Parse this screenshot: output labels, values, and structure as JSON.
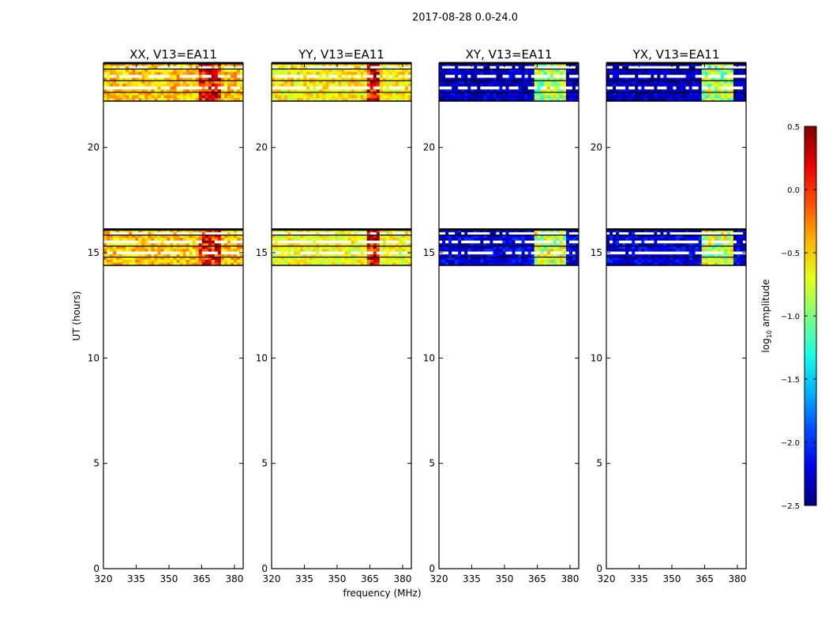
{
  "figure": {
    "suptitle": "2017-08-28 0.0-24.0",
    "colormap": "jet",
    "background": "#ffffff",
    "colorbar": {
      "label_base": "log",
      "label_sub": "10",
      "label_rest": " amplitude",
      "range": [
        -2.5,
        0.5
      ],
      "ticks": [
        "0.5",
        "0.0",
        "−0.5",
        "−1.0",
        "−1.5",
        "−2.0",
        "−2.5"
      ],
      "tick_values": [
        0.5,
        0.0,
        -0.5,
        -1.0,
        -1.5,
        -2.0,
        -2.5
      ]
    }
  },
  "chart_data": [
    {
      "type": "heatmap",
      "title": "XX, V13=EA11",
      "xlabel": "",
      "ylabel": "UT (hours)",
      "xlim": [
        320,
        384
      ],
      "ylim": [
        0,
        24
      ],
      "xticks": [
        "320",
        "335",
        "350",
        "365",
        "380"
      ],
      "xtick_values": [
        320,
        335,
        350,
        365,
        380
      ],
      "yticks": [
        "0",
        "5",
        "10",
        "15",
        "20"
      ],
      "ytick_values": [
        0,
        5,
        10,
        15,
        20
      ],
      "data_blocks": [
        {
          "ut_range": [
            14.4,
            16.1
          ],
          "baseline_log_amp": -0.45,
          "rfi_band_mhz": [
            363,
            374
          ],
          "rfi_log_amp": 0.05
        },
        {
          "ut_range": [
            22.2,
            24.0
          ],
          "baseline_log_amp": -0.45,
          "rfi_band_mhz": [
            363,
            374
          ],
          "rfi_log_amp": 0.05
        }
      ]
    },
    {
      "type": "heatmap",
      "title": "YY, V13=EA11",
      "xlabel": "frequency (MHz)",
      "ylabel": "",
      "xlim": [
        320,
        384
      ],
      "ylim": [
        0,
        24
      ],
      "xticks": [
        "320",
        "335",
        "350",
        "365",
        "380"
      ],
      "xtick_values": [
        320,
        335,
        350,
        365,
        380
      ],
      "yticks": [
        "0",
        "5",
        "10",
        "15",
        "20"
      ],
      "ytick_values": [
        0,
        5,
        10,
        15,
        20
      ],
      "data_blocks": [
        {
          "ut_range": [
            14.4,
            16.1
          ],
          "baseline_log_amp": -0.65,
          "rfi_band_mhz": [
            363,
            370
          ],
          "rfi_log_amp": 0.15
        },
        {
          "ut_range": [
            22.2,
            24.0
          ],
          "baseline_log_amp": -0.6,
          "rfi_band_mhz": [
            363,
            370
          ],
          "rfi_log_amp": 0.1
        }
      ]
    },
    {
      "type": "heatmap",
      "title": "XY, V13=EA11",
      "xlabel": "",
      "ylabel": "",
      "xlim": [
        320,
        384
      ],
      "ylim": [
        0,
        24
      ],
      "xticks": [
        "320",
        "335",
        "350",
        "365",
        "380"
      ],
      "xtick_values": [
        320,
        335,
        350,
        365,
        380
      ],
      "yticks": [
        "0",
        "5",
        "10",
        "15",
        "20"
      ],
      "ytick_values": [
        0,
        5,
        10,
        15,
        20
      ],
      "data_blocks": [
        {
          "ut_range": [
            14.4,
            16.1
          ],
          "baseline_log_amp": -2.2,
          "rfi_band_mhz": [
            363,
            378
          ],
          "rfi_log_amp": -0.8
        },
        {
          "ut_range": [
            22.2,
            24.0
          ],
          "baseline_log_amp": -2.3,
          "rfi_band_mhz": [
            363,
            378
          ],
          "rfi_log_amp": -0.9
        }
      ]
    },
    {
      "type": "heatmap",
      "title": "YX, V13=EA11",
      "xlabel": "",
      "ylabel": "",
      "xlim": [
        320,
        384
      ],
      "ylim": [
        0,
        24
      ],
      "xticks": [
        "320",
        "335",
        "350",
        "365",
        "380"
      ],
      "xtick_values": [
        320,
        335,
        350,
        365,
        380
      ],
      "yticks": [
        "0",
        "5",
        "10",
        "15",
        "20"
      ],
      "ytick_values": [
        0,
        5,
        10,
        15,
        20
      ],
      "data_blocks": [
        {
          "ut_range": [
            14.4,
            16.1
          ],
          "baseline_log_amp": -2.2,
          "rfi_band_mhz": [
            363,
            378
          ],
          "rfi_log_amp": -0.8
        },
        {
          "ut_range": [
            22.2,
            24.0
          ],
          "baseline_log_amp": -2.3,
          "rfi_band_mhz": [
            363,
            378
          ],
          "rfi_log_amp": -0.9
        }
      ]
    }
  ]
}
